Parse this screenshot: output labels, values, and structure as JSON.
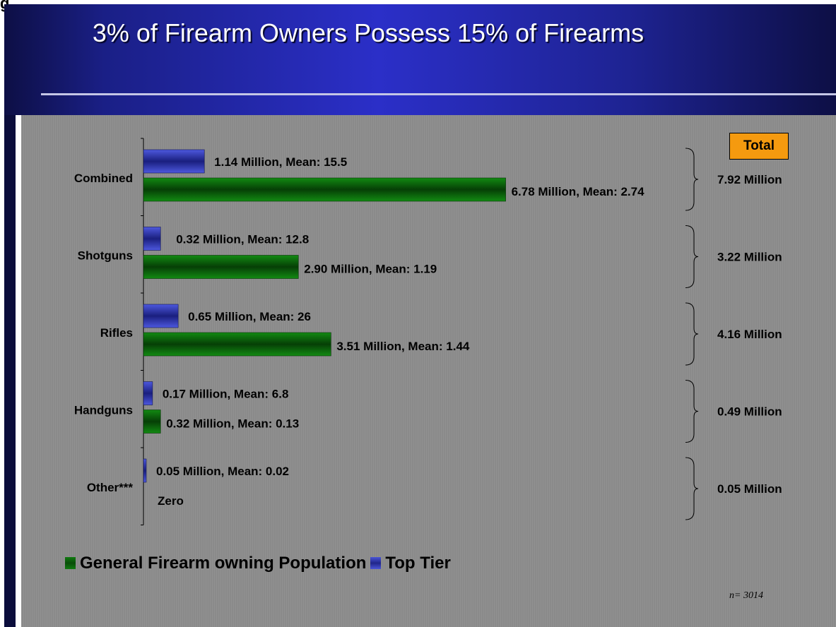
{
  "corner_fragment": "g",
  "title": "3% of Firearm Owners Possess 15% of Firearms",
  "total_header": "Total",
  "legend": {
    "general": "General Firearm owning Population",
    "top": "Top Tier"
  },
  "sample_note": "n= 3014",
  "colors": {
    "general": "#0b6b0b",
    "top_tier": "#2b31b8",
    "total_box": "#f59a0f"
  },
  "chart_data": {
    "type": "bar",
    "orientation": "horizontal",
    "categories": [
      "Combined",
      "Shotguns",
      "Rifles",
      "Handguns",
      "Other***"
    ],
    "series": [
      {
        "name": "Top Tier",
        "values": [
          1.14,
          0.32,
          0.65,
          0.17,
          0.05
        ],
        "labels": [
          "1.14 Million, Mean: 15.5",
          "0.32 Million, Mean: 12.8",
          "0.65 Million, Mean: 26",
          "0.17 Million, Mean: 6.8",
          "0.05 Million, Mean: 0.02"
        ]
      },
      {
        "name": "General Firearm owning Population",
        "values": [
          6.78,
          2.9,
          3.51,
          0.32,
          0
        ],
        "labels": [
          "6.78 Million, Mean: 2.74",
          "2.90 Million, Mean: 1.19",
          "3.51 Million, Mean: 1.44",
          "0.32 Million, Mean: 0.13",
          "Zero"
        ]
      }
    ],
    "totals": [
      "7.92 Million",
      "3.22 Million",
      "4.16 Million",
      "0.49 Million",
      "0.05 Million"
    ],
    "xlim": [
      0,
      10
    ],
    "grid": false,
    "legend_position": "bottom-left"
  }
}
